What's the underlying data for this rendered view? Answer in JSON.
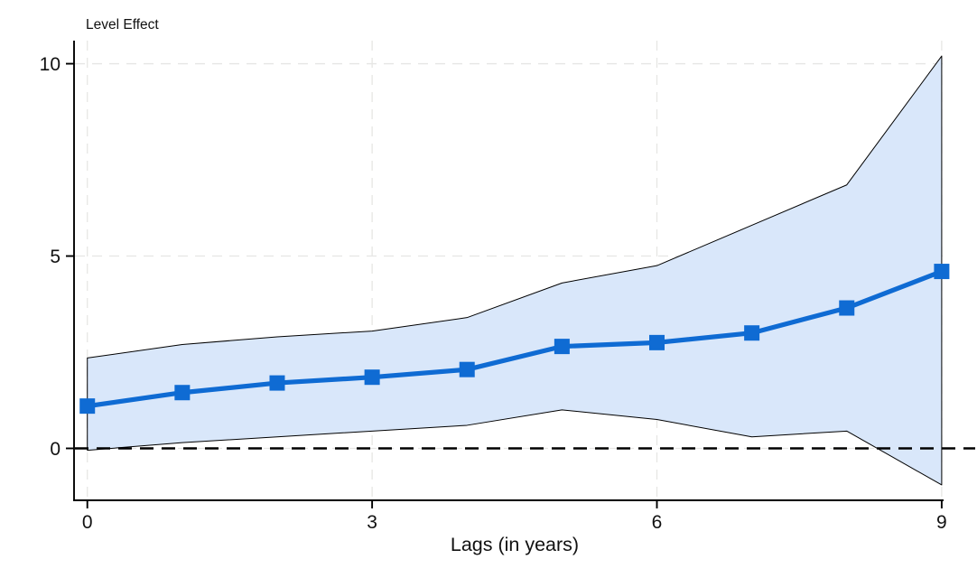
{
  "figure": {
    "background": "#ffffff"
  },
  "chart_data": {
    "type": "line",
    "title": "Level Effect",
    "xlabel": "Lags (in years)",
    "ylabel": "",
    "x": [
      0,
      1,
      2,
      3,
      4,
      5,
      6,
      7,
      8,
      9
    ],
    "series": [
      {
        "name": "level-effect-point-estimate",
        "marker": "square",
        "values": [
          1.1,
          1.45,
          1.7,
          1.85,
          2.05,
          2.65,
          2.75,
          3.0,
          3.65,
          4.6
        ]
      }
    ],
    "confidence_band": {
      "upper": [
        2.35,
        2.7,
        2.9,
        3.05,
        3.4,
        4.3,
        4.75,
        5.8,
        6.85,
        10.2
      ],
      "lower": [
        -0.05,
        0.15,
        0.3,
        0.45,
        0.6,
        1.0,
        0.75,
        0.3,
        0.45,
        -0.95
      ]
    },
    "reference_line_y": 0,
    "xticks": [
      0,
      3,
      6,
      9
    ],
    "yticks": [
      0,
      5,
      10
    ],
    "xlim": [
      -0.14,
      9.02
    ],
    "ylim": [
      -1.35,
      10.6
    ],
    "grid": true,
    "legend": "none",
    "colors": {
      "line": "#0f6bd3",
      "marker": "#0f6bd3",
      "band_fill": "#d9e7fa",
      "band_edge": "#000000",
      "grid": "#e6e6e4",
      "zero_line": "#000000",
      "axis": "#000000",
      "text": "#111111"
    }
  }
}
